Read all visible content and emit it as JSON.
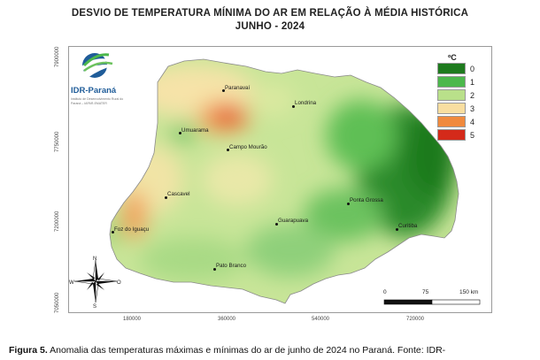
{
  "title_line1": "DESVIO DE TEMPERATURA MÍNIMA DO AR EM RELAÇÃO À MÉDIA HISTÓRICA",
  "title_line2": "JUNHO - 2024",
  "logo": {
    "name": "IDR-Paraná",
    "subtitle": "Instituto de Desenvolvimento Rural do Paraná – IAPAR-EMATER"
  },
  "legend": {
    "unit": "ºC",
    "items": [
      {
        "label": "0",
        "color": "#1e7a1e"
      },
      {
        "label": "1",
        "color": "#4cb84c"
      },
      {
        "label": "2",
        "color": "#b9e08a"
      },
      {
        "label": "3",
        "color": "#f8dea0"
      },
      {
        "label": "4",
        "color": "#f08a3e"
      },
      {
        "label": "5",
        "color": "#d42a1a"
      }
    ]
  },
  "axes": {
    "y_ticks": [
      "7900000",
      "7750000",
      "7200000",
      "7050000"
    ],
    "x_ticks": [
      "180000",
      "360000",
      "540000",
      "720000"
    ]
  },
  "scale": {
    "labels": [
      "0",
      "75",
      "150 km"
    ]
  },
  "compass": {
    "n": "N",
    "s": "S",
    "e": "O",
    "w": "W"
  },
  "cities": [
    {
      "name": "Paranavaí"
    },
    {
      "name": "Londrina"
    },
    {
      "name": "Umuarama"
    },
    {
      "name": "Campo Mourão"
    },
    {
      "name": "Cascavel"
    },
    {
      "name": "Ponta Grossa"
    },
    {
      "name": "Foz do Iguaçu"
    },
    {
      "name": "Guarapuava"
    },
    {
      "name": "Curitiba"
    },
    {
      "name": "Pato Branco"
    }
  ],
  "caption": {
    "figure": "Figura 5.",
    "text": " Anomalia das temperaturas máximas e mínimas do ar de junho de 2024 no Paraná. Fonte: IDR-"
  }
}
